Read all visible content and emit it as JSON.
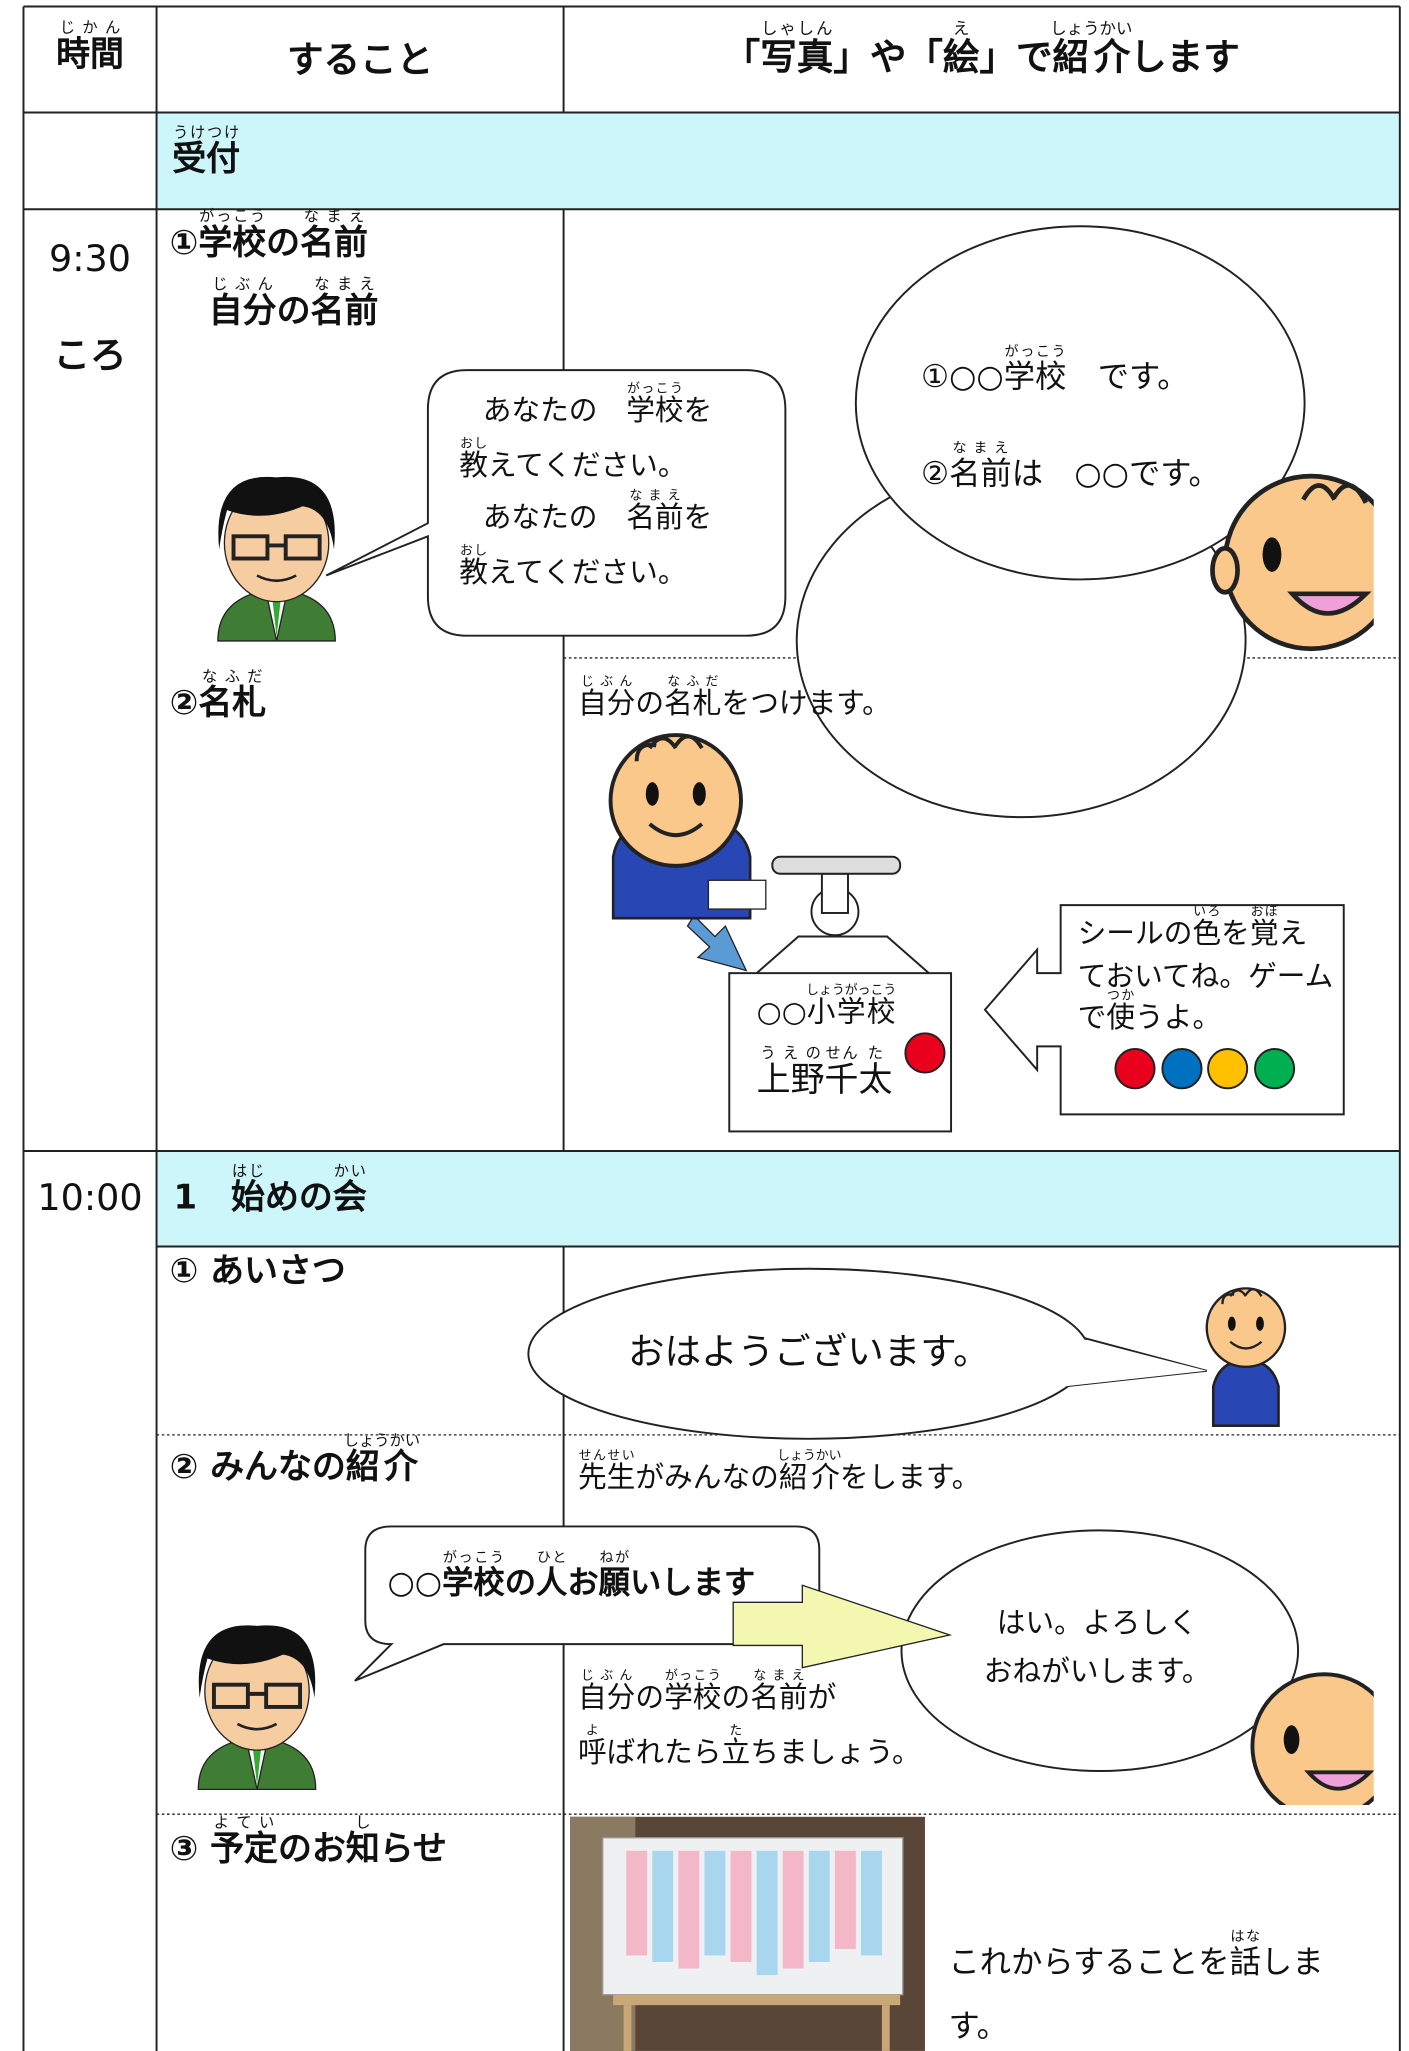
{
  "header": {
    "time": [
      {
        "base": "時間",
        "ruby": "じかん"
      }
    ],
    "action": "すること",
    "intro": [
      "「",
      {
        "base": "写真",
        "ruby": "しゃしん"
      },
      "」や「",
      {
        "base": "絵",
        "ruby": "え"
      },
      "」で",
      {
        "base": "紹介",
        "ruby": "しょうかい"
      },
      "します"
    ]
  },
  "reception": [
    {
      "base": "受付",
      "ruby": "うけつけ"
    }
  ],
  "block1": {
    "time": "9:30",
    "time_note": "ころ",
    "item1": {
      "line1": [
        "①",
        {
          "base": "学校",
          "ruby": "がっこう"
        },
        "の",
        {
          "base": "名前",
          "ruby": "なまえ"
        }
      ],
      "line2": [
        {
          "base": "自分",
          "ruby": "じぶん"
        },
        "の",
        {
          "base": "名前",
          "ruby": "なまえ"
        }
      ],
      "teacher": [
        [
          "あなたの　",
          {
            "base": "学校",
            "ruby": "がっこう"
          },
          "を"
        ],
        [
          {
            "base": "教",
            "ruby": "おし"
          },
          "えてください。"
        ],
        [
          "あなたの　",
          {
            "base": "名前",
            "ruby": "なまえ"
          },
          "を"
        ],
        [
          {
            "base": "教",
            "ruby": "おし"
          },
          "えてください。"
        ]
      ],
      "student": [
        [
          "①○○",
          {
            "base": "学校",
            "ruby": "がっこう"
          },
          "　です。"
        ],
        [
          "②",
          {
            "base": "名前",
            "ruby": "なまえ"
          },
          "は　○○です。"
        ]
      ]
    },
    "item2": {
      "label": [
        "②",
        {
          "base": "名札",
          "ruby": "なふだ"
        }
      ],
      "desc": [
        {
          "base": "自分",
          "ruby": "じぶん"
        },
        "の",
        {
          "base": "名札",
          "ruby": "なふだ"
        },
        "をつけます。"
      ],
      "tag_school": [
        "○○",
        {
          "base": "小学校",
          "ruby": "しょうがっこう"
        }
      ],
      "tag_name": [
        {
          "base": "上野",
          "ruby": "うえの"
        },
        {
          "base": "千",
          "ruby": "せん"
        },
        {
          "base": "太",
          "ruby": "た"
        }
      ],
      "note": [
        [
          "シールの",
          {
            "base": "色",
            "ruby": "いろ"
          },
          "を",
          {
            "base": "覚",
            "ruby": "おぼ"
          },
          "え"
        ],
        [
          "ておいてね。ゲーム"
        ],
        [
          "で",
          {
            "base": "使",
            "ruby": "つか"
          },
          "うよ。"
        ]
      ]
    }
  },
  "block2": {
    "time": "10:00",
    "title": [
      "1　",
      {
        "base": "始",
        "ruby": "はじ"
      },
      "めの",
      {
        "base": "会",
        "ruby": "かい"
      }
    ],
    "greeting": {
      "label": "① あいさつ",
      "bubble": "おはようございます。"
    },
    "intro": {
      "label": [
        "② みんなの",
        {
          "base": "紹介",
          "ruby": "しょうかい"
        }
      ],
      "desc": [
        {
          "base": "先生",
          "ruby": "せんせい"
        },
        "がみんなの",
        {
          "base": "紹介",
          "ruby": "しょうかい"
        },
        "をします。"
      ],
      "teacher": [
        "○○",
        {
          "base": "学校",
          "ruby": "がっこう"
        },
        "の",
        {
          "base": "人",
          "ruby": "ひと"
        },
        "お",
        {
          "base": "願",
          "ruby": "ねが"
        },
        "いします"
      ],
      "student": [
        "はい。よろしく",
        "おねがいします。"
      ],
      "note": [
        [
          {
            "base": "自分",
            "ruby": "じぶん"
          },
          "の",
          {
            "base": "学校",
            "ruby": "がっこう"
          },
          "の",
          {
            "base": "名前",
            "ruby": "なまえ"
          },
          "が"
        ],
        [
          {
            "base": "呼",
            "ruby": "よ"
          },
          "ばれたら",
          {
            "base": "立",
            "ruby": "た"
          },
          "ちましょう。"
        ]
      ]
    },
    "schedule": {
      "label": [
        "③ ",
        {
          "base": "予定",
          "ruby": "よてい"
        },
        "のお",
        {
          "base": "知",
          "ruby": "し"
        },
        "らせ"
      ],
      "desc": [
        [
          "これからすることを",
          {
            "base": "話",
            "ruby": "はな"
          },
          "しま"
        ],
        [
          "す。"
        ]
      ]
    }
  }
}
